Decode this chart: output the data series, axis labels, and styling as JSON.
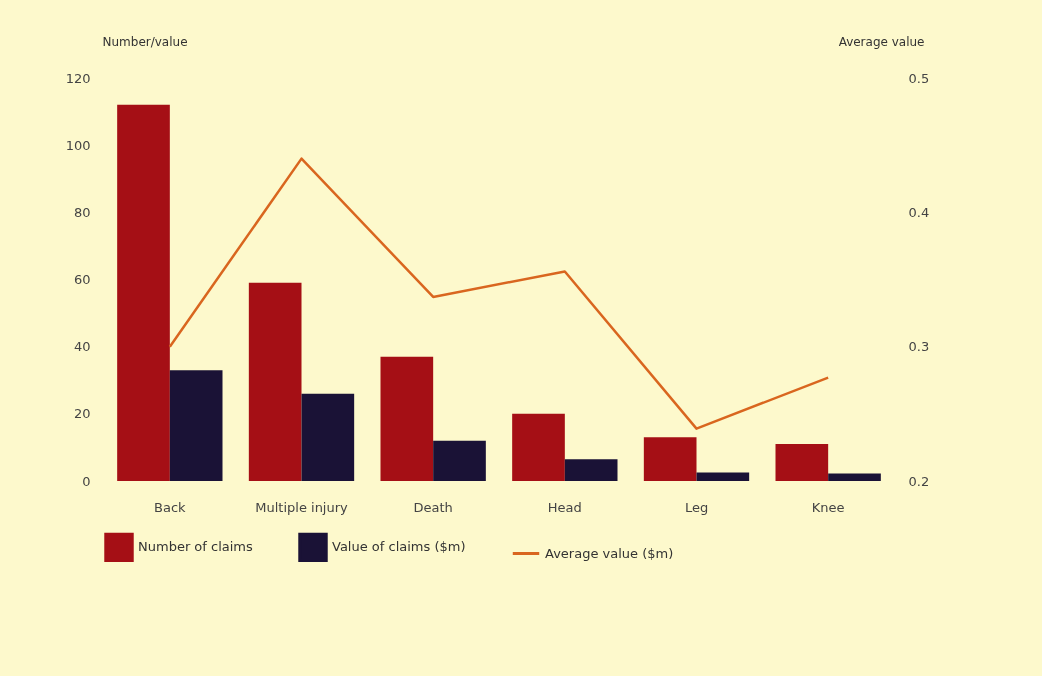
{
  "chart_data": {
    "type": "bar",
    "ylabel": "Number/value",
    "y2label": "Average value",
    "categories": [
      "Back",
      "Multiple injury",
      "Death",
      "Head",
      "Leg",
      "Knee"
    ],
    "series": [
      {
        "name": "Number of claims",
        "color": "#a50f15",
        "values": [
          112,
          59,
          37,
          20,
          13,
          11
        ]
      },
      {
        "name": "Value of claims ($m)",
        "color": "#1a1236",
        "values": [
          33,
          26,
          12,
          6.5,
          2.5,
          2.2
        ]
      },
      {
        "name": "Average value ($m)",
        "type": "line",
        "axis": "y2",
        "color": "#d9661f",
        "values": [
          0.3,
          0.44,
          0.337,
          0.356,
          0.239,
          0.277
        ]
      }
    ],
    "ylim": [
      0,
      120
    ],
    "yticks": [
      0,
      20,
      40,
      60,
      80,
      100,
      120
    ],
    "y2lim": [
      0.2,
      0.5
    ],
    "y2ticks": [
      0.2,
      0.3,
      0.4,
      0.5
    ],
    "legend": "bottom"
  }
}
